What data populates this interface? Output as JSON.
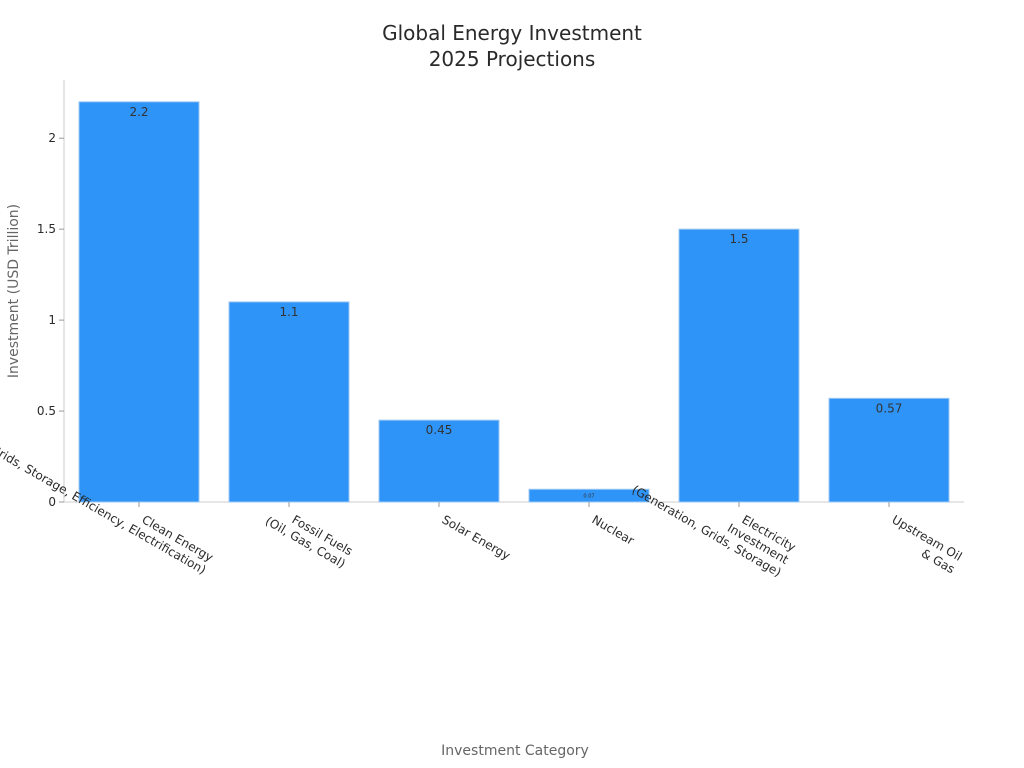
{
  "chart_data": {
    "type": "bar",
    "title": [
      "Global Energy Investment",
      "2025 Projections"
    ],
    "xlabel": "Investment Category",
    "ylabel": "Investment (USD Trillion)",
    "ylim": [
      0,
      2.32
    ],
    "yticks": [
      0,
      0.5,
      1,
      1.5,
      2
    ],
    "ytick_labels": [
      "0",
      "0.5",
      "1",
      "1.5",
      "2"
    ],
    "grid": false,
    "bar_color": "#2e94f7",
    "bar_edge_color": "#9fc8f3",
    "categories": [
      [
        "Clean Energy",
        "(Renewables, Nuclear, Grids, Storage, Efficiency, Electrification)"
      ],
      [
        "Fossil Fuels",
        "(Oil, Gas, Coal)"
      ],
      [
        "Solar Energy"
      ],
      [
        "Nuclear"
      ],
      [
        "Electricity",
        "Investment",
        "(Generation, Grids, Storage)"
      ],
      [
        "Upstream Oil",
        "& Gas"
      ]
    ],
    "values": [
      2.2,
      1.1,
      0.45,
      0.07,
      1.5,
      0.57
    ],
    "data_labels": [
      "2.2",
      "1.1",
      "0.45",
      "0.07",
      "1.5",
      "0.57"
    ]
  }
}
